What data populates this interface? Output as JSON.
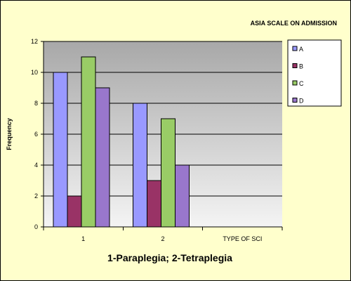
{
  "chart_data": {
    "type": "bar",
    "title": "ASIA  SCALE  ON ADMISSION",
    "xlabel": "1-Paraplegia; 2-Tetraplegia",
    "ylabel": "Frequency",
    "categories": [
      "1",
      "2",
      "TYPE OF SCI"
    ],
    "ylim": [
      0,
      12
    ],
    "yticks": [
      0,
      2,
      4,
      6,
      8,
      10,
      12
    ],
    "grid": true,
    "legend": "right",
    "series": [
      {
        "name": "A",
        "color": "#9999ff",
        "values": [
          10,
          8,
          null
        ]
      },
      {
        "name": "B",
        "color": "#993366",
        "values": [
          2,
          3,
          null
        ]
      },
      {
        "name": "C",
        "color": "#99cc66",
        "values": [
          11,
          7,
          null
        ]
      },
      {
        "name": "D",
        "color": "#9977cc",
        "values": [
          9,
          4,
          null
        ]
      }
    ]
  },
  "style": {
    "background": "#ffffcc",
    "plot_area": [
      "#a8a8a8",
      "#f4f4f4"
    ],
    "border": "#000000"
  }
}
